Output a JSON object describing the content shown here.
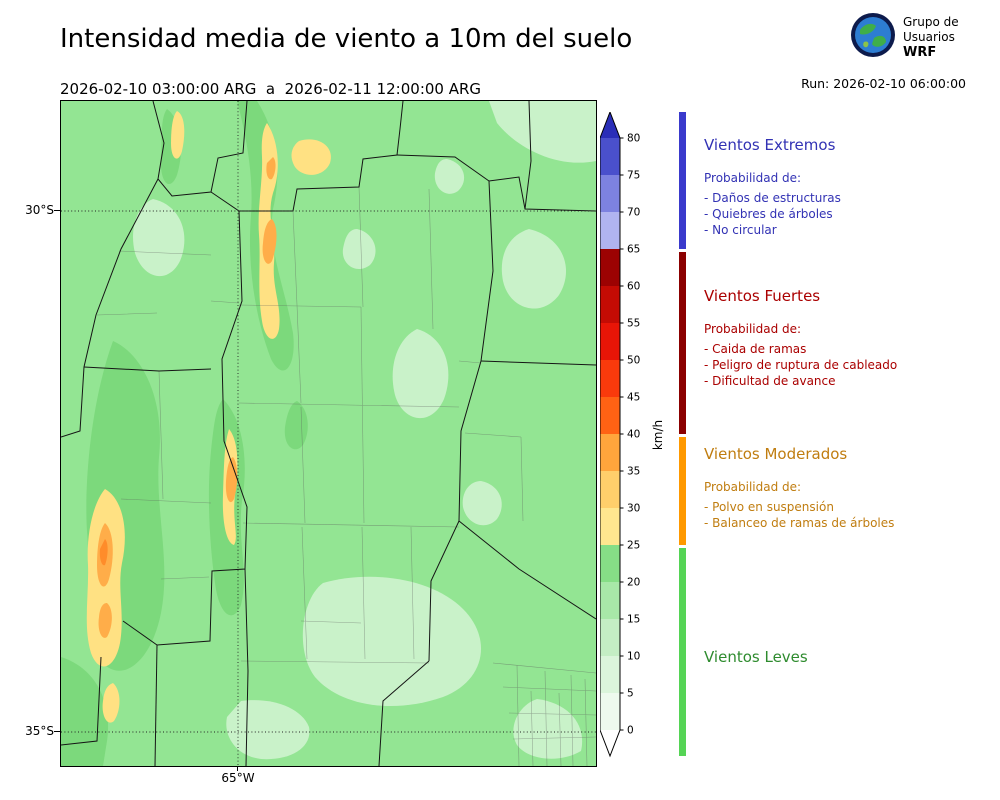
{
  "header": {
    "title": "Intensidad media de viento a 10m del suelo",
    "period": "2026-02-10 03:00:00 ARG  a  2026-02-11 12:00:00 ARG",
    "run": "Run: 2026-02-10 06:00:00",
    "logo": {
      "line1": "Grupo de",
      "line2": "Usuarios",
      "line3": "WRF"
    }
  },
  "map": {
    "lat_ticks": [
      "30°S",
      "35°S"
    ],
    "lon_ticks": [
      "65°W"
    ]
  },
  "colorbar": {
    "unit": "km/h",
    "ticks": [
      0,
      5,
      10,
      15,
      20,
      25,
      30,
      35,
      40,
      45,
      50,
      55,
      60,
      65,
      70,
      75,
      80
    ],
    "segment_colors": [
      "#eefaee",
      "#dbf5db",
      "#c4eec4",
      "#a8e8a8",
      "#86de86",
      "#ffe78f",
      "#ffcf6b",
      "#ffa53c",
      "#ff6214",
      "#f93a0c",
      "#e81507",
      "#c40b04",
      "#9c0202",
      "#b0b4f0",
      "#7d82e0",
      "#4a50cc"
    ],
    "over_color": "#2a2eb8",
    "under_color": "#ffffff"
  },
  "legend": {
    "sections": [
      {
        "title": "Vientos Extremos",
        "text_color": "#3232b4",
        "strip_color": "#3a3acc",
        "subtitle": "Probabilidad de:",
        "items": [
          "- Daños de estructuras",
          "- Quiebres de árboles",
          "- No circular"
        ]
      },
      {
        "title": "Vientos Fuertes",
        "text_color": "#aa0000",
        "strip_color": "#8b0000",
        "subtitle": "Probabilidad de:",
        "items": [
          "- Caida de ramas",
          "- Peligro de ruptura de cableado",
          "- Dificultad de avance"
        ]
      },
      {
        "title": "Vientos Moderados",
        "text_color": "#c07d10",
        "strip_color": "#ff9900",
        "subtitle": "Probabilidad de:",
        "items": [
          "- Polvo en suspensión",
          "- Balanceo de ramas de árboles"
        ]
      },
      {
        "title": "Vientos Leves",
        "text_color": "#2e8b2e",
        "strip_color": "#55d455",
        "subtitle": "",
        "items": []
      }
    ]
  }
}
